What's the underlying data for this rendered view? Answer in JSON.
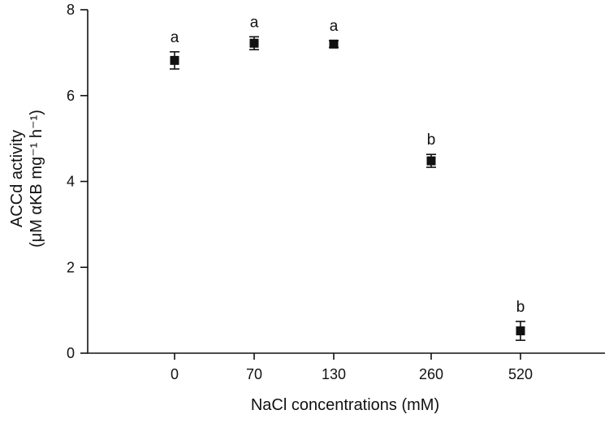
{
  "chart_data": {
    "type": "scatter",
    "categories": [
      "0",
      "70",
      "130",
      "260",
      "520"
    ],
    "values": [
      6.82,
      7.22,
      7.2,
      4.48,
      0.52
    ],
    "errors": [
      0.2,
      0.15,
      0.08,
      0.15,
      0.22
    ],
    "significance": [
      "a",
      "a",
      "a",
      "b",
      "b"
    ],
    "title": "",
    "xlabel": "NaCl concentrations (mM)",
    "ylabel_line1": "ACCd activity",
    "ylabel_line2": "(μM αKB mg⁻¹ h⁻¹)",
    "ylim": [
      0,
      8
    ],
    "yticks": [
      0,
      2,
      4,
      6,
      8
    ],
    "grid": false,
    "marker_color": "#111111"
  }
}
